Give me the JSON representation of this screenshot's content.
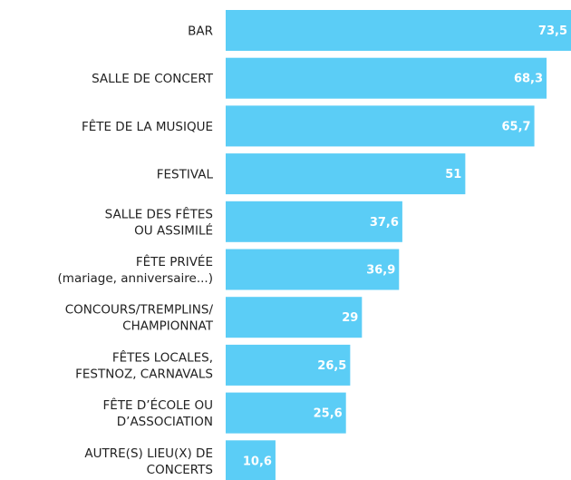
{
  "chart_data": {
    "type": "bar",
    "orientation": "horizontal",
    "categories": [
      "BAR",
      "SALLE DE CONCERT",
      "FÊTE DE LA MUSIQUE",
      "FESTIVAL",
      "SALLE DES FÊTES\nOU ASSIMILÉ",
      "FÊTE PRIVÉE\n(mariage, anniversaire...)",
      "CONCOURS/TREMPLINS/\nCHAMPIONNAT",
      "FÊTES LOCALES,\nFESTNOZ, CARNAVALS",
      "FÊTE D’ÉCOLE OU\nD’ASSOCIATION",
      "AUTRE(S) LIEU(X) DE\nCONCERTS"
    ],
    "values": [
      73.5,
      68.3,
      65.7,
      51,
      37.6,
      36.9,
      29,
      26.5,
      25.6,
      10.6
    ],
    "value_labels": [
      "73,5",
      "68,3",
      "65,7",
      "51",
      "37,6",
      "36,9",
      "29",
      "26,5",
      "25,6",
      "10,6"
    ],
    "color": "#5bcdf6"
  }
}
